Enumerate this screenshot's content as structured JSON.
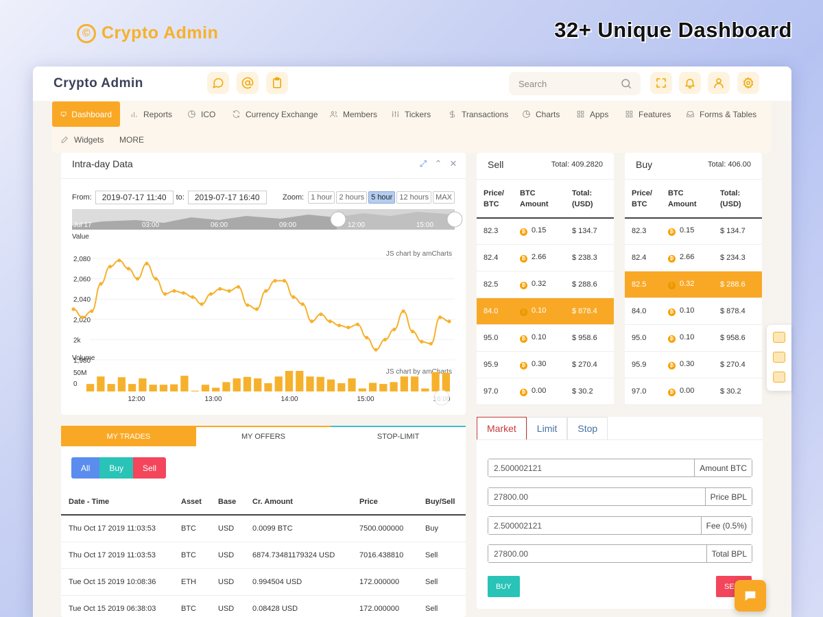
{
  "promo": {
    "logo_symbol": "©",
    "logo_text": "Crypto Admin",
    "tagline": "32+ Unique Dashboard"
  },
  "header": {
    "brand": "Crypto Admin",
    "search_placeholder": "Search"
  },
  "nav": {
    "items": [
      {
        "label": "Dashboard",
        "icon": "monitor-icon"
      },
      {
        "label": "Reports",
        "icon": "bar-chart-icon"
      },
      {
        "label": "ICO",
        "icon": "pie-icon"
      },
      {
        "label": "Currency Exchange",
        "icon": "refresh-icon"
      },
      {
        "label": "Members",
        "icon": "users-icon"
      },
      {
        "label": "Tickers",
        "icon": "sliders-icon"
      },
      {
        "label": "Transactions",
        "icon": "dollar-icon"
      },
      {
        "label": "Charts",
        "icon": "pie-icon"
      },
      {
        "label": "Apps",
        "icon": "grid-icon"
      },
      {
        "label": "Features",
        "icon": "grid-icon"
      },
      {
        "label": "Forms & Tables",
        "icon": "inbox-icon"
      },
      {
        "label": "Widgets",
        "icon": "edit-icon"
      },
      {
        "label": "MORE",
        "icon": ""
      }
    ]
  },
  "intraday": {
    "title": "Intra-day Data",
    "from_label": "From:",
    "from_value": "2019-07-17 11:40",
    "to_label": "to:",
    "to_value": "2019-07-17 16:40",
    "zoom_label": "Zoom:",
    "zoom_options": [
      "1 hour",
      "2 hours",
      "5 hour",
      "12 hours",
      "MAX"
    ],
    "zoom_selected": "5 hour",
    "credit": "JS chart by amCharts"
  },
  "chart_data": {
    "type": "line",
    "ylabel": "Value",
    "y_ticks": [
      "2,080",
      "2,060",
      "2,040",
      "2,020",
      "2k",
      "1,980"
    ],
    "ylim": [
      1980,
      2080
    ],
    "x_ticks": [
      "12:00",
      "13:00",
      "14:00",
      "15:00",
      "16:00"
    ],
    "scrollbar_ticks": [
      "Jul 17",
      "03:00",
      "06:00",
      "09:00",
      "12:00",
      "15:00"
    ],
    "value_series": [
      2030,
      2022,
      2028,
      2055,
      2072,
      2078,
      2070,
      2060,
      2075,
      2060,
      2045,
      2048,
      2046,
      2042,
      2035,
      2045,
      2050,
      2048,
      2052,
      2034,
      2030,
      2048,
      2058,
      2058,
      2042,
      2035,
      2018,
      2025,
      2018,
      2014,
      2012,
      2015,
      2002,
      1990,
      2000,
      2010,
      2028,
      2008,
      1998,
      1996,
      2022,
      2018
    ],
    "volume": {
      "ylabel": "Volume",
      "y_ticks": [
        "50M",
        "0"
      ],
      "values": [
        20,
        40,
        20,
        38,
        20,
        35,
        18,
        18,
        19,
        42,
        2,
        18,
        10,
        25,
        35,
        39,
        35,
        22,
        40,
        55,
        55,
        40,
        39,
        32,
        22,
        35,
        8,
        23,
        20,
        25,
        40,
        40,
        8,
        52,
        50
      ]
    }
  },
  "sell_book": {
    "title": "Sell",
    "total": "Total: 409.2820",
    "headers": [
      "Price/ BTC",
      "BTC Amount",
      "Total: (USD)"
    ],
    "rows": [
      {
        "price": "82.3",
        "amount": "0.15",
        "total": "$ 134.7",
        "highlight": false
      },
      {
        "price": "82.4",
        "amount": "2.66",
        "total": "$ 238.3",
        "highlight": false
      },
      {
        "price": "82.5",
        "amount": "0.32",
        "total": "$ 288.6",
        "highlight": false
      },
      {
        "price": "84.0",
        "amount": "0.10",
        "total": "$ 878.4",
        "highlight": true
      },
      {
        "price": "95.0",
        "amount": "0.10",
        "total": "$ 958.6",
        "highlight": false
      },
      {
        "price": "95.9",
        "amount": "0.30",
        "total": "$ 270.4",
        "highlight": false
      },
      {
        "price": "97.0",
        "amount": "0.00",
        "total": "$ 30.2",
        "highlight": false
      }
    ]
  },
  "buy_book": {
    "title": "Buy",
    "total": "Total: 406.00",
    "headers": [
      "Price/ BTC",
      "BTC Amount",
      "Total: (USD)"
    ],
    "rows": [
      {
        "price": "82.3",
        "amount": "0.15",
        "total": "$ 134.7",
        "highlight": false
      },
      {
        "price": "82.4",
        "amount": "2.66",
        "total": "$ 234.3",
        "highlight": false
      },
      {
        "price": "82.5",
        "amount": "0.32",
        "total": "$ 288.6",
        "highlight": true
      },
      {
        "price": "84.0",
        "amount": "0.10",
        "total": "$ 878.4",
        "highlight": false
      },
      {
        "price": "95.0",
        "amount": "0.10",
        "total": "$ 958.6",
        "highlight": false
      },
      {
        "price": "95.9",
        "amount": "0.30",
        "total": "$ 270.4",
        "highlight": false
      },
      {
        "price": "97.0",
        "amount": "0.00",
        "total": "$ 30.2",
        "highlight": false
      }
    ]
  },
  "trades": {
    "tabs": [
      "MY TRADES",
      "MY OFFERS",
      "STOP-LIMIT"
    ],
    "filters": [
      "All",
      "Buy",
      "Sell"
    ],
    "headers": [
      "Date - Time",
      "Asset",
      "Base",
      "Cr. Amount",
      "Price",
      "Buy/Sell"
    ],
    "rows": [
      {
        "date": "Thu Oct 17 2019 11:03:53",
        "asset": "BTC",
        "base": "USD",
        "amount": "0.0099 BTC",
        "price": "7500.000000",
        "side": "Buy"
      },
      {
        "date": "Thu Oct 17 2019 11:03:53",
        "asset": "BTC",
        "base": "USD",
        "amount": "6874.73481179324 USD",
        "price": "7016.438810",
        "side": "Sell"
      },
      {
        "date": "Tue Oct 15 2019 10:08:36",
        "asset": "ETH",
        "base": "USD",
        "amount": "0.994504 USD",
        "price": "172.000000",
        "side": "Sell"
      },
      {
        "date": "Tue Oct 15 2019 06:38:03",
        "asset": "BTC",
        "base": "USD",
        "amount": "0.08428 USD",
        "price": "172.000000",
        "side": "Sell"
      }
    ]
  },
  "order": {
    "tabs": [
      "Market",
      "Limit",
      "Stop"
    ],
    "fields": [
      {
        "value": "2.500002121",
        "addon": "Amount BTC"
      },
      {
        "value": "27800.00",
        "addon": "Price BPL"
      },
      {
        "value": "2.500002121",
        "addon": "Fee (0.5%)"
      },
      {
        "value": "27800.00",
        "addon": "Total BPL"
      }
    ],
    "buy_label": "BUY",
    "sell_label": "SE"
  }
}
